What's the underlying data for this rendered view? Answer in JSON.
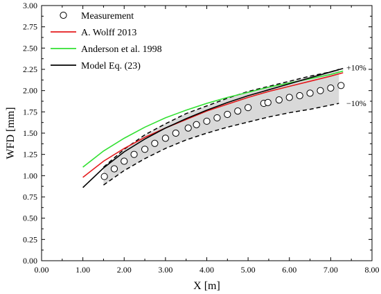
{
  "chart_data": {
    "type": "line",
    "xlabel": "X [m]",
    "ylabel": "WFD [mm]",
    "xlim": [
      0.0,
      8.0
    ],
    "ylim": [
      0.0,
      3.0
    ],
    "x_ticks": [
      "0.00",
      "1.00",
      "2.00",
      "3.00",
      "4.00",
      "5.00",
      "6.00",
      "7.00",
      "8.00"
    ],
    "y_ticks": [
      "0.00",
      "0.25",
      "0.50",
      "0.75",
      "1.00",
      "1.25",
      "1.50",
      "1.75",
      "2.00",
      "2.25",
      "2.50",
      "2.75",
      "3.00"
    ],
    "grid": false,
    "legend_position": "top-left",
    "legend": {
      "measurement": "Measurement",
      "wolff": "A. Wolff 2013",
      "anderson": "Anderson et al. 1998",
      "model": "Model Eq. (23)"
    },
    "annotations": {
      "plus": "+10%",
      "minus": "−10%"
    },
    "colors": {
      "wolff": "#e41a1c",
      "anderson": "#33e033",
      "model": "#000000",
      "band": "#d9d9d9",
      "marker_edge": "#000000"
    },
    "measurement": {
      "x": [
        1.52,
        1.76,
        2.0,
        2.24,
        2.5,
        2.74,
        3.0,
        3.25,
        3.55,
        3.75,
        4.0,
        4.25,
        4.5,
        4.75,
        5.0,
        5.38,
        5.48,
        5.75,
        6.0,
        6.25,
        6.5,
        6.75,
        7.0,
        7.25
      ],
      "y": [
        0.99,
        1.08,
        1.17,
        1.25,
        1.31,
        1.38,
        1.44,
        1.5,
        1.56,
        1.6,
        1.64,
        1.68,
        1.72,
        1.76,
        1.8,
        1.85,
        1.86,
        1.89,
        1.92,
        1.94,
        1.97,
        2.0,
        2.03,
        2.06
      ]
    },
    "series": [
      {
        "name": "A. Wolff 2013",
        "key": "wolff",
        "x": [
          1.0,
          1.5,
          2.0,
          2.5,
          3.0,
          3.5,
          4.0,
          4.5,
          5.0,
          5.5,
          6.0,
          6.5,
          7.0,
          7.3
        ],
        "y": [
          0.98,
          1.17,
          1.32,
          1.45,
          1.56,
          1.66,
          1.76,
          1.84,
          1.92,
          1.99,
          2.05,
          2.11,
          2.17,
          2.21
        ]
      },
      {
        "name": "Anderson et al. 1998",
        "key": "anderson",
        "x": [
          1.0,
          1.5,
          2.0,
          2.5,
          3.0,
          3.5,
          4.0,
          4.5,
          5.0,
          5.5,
          6.0,
          6.5,
          7.0,
          7.3
        ],
        "y": [
          1.1,
          1.29,
          1.44,
          1.57,
          1.68,
          1.77,
          1.85,
          1.92,
          1.98,
          2.04,
          2.09,
          2.14,
          2.19,
          2.23
        ]
      },
      {
        "name": "Model Eq. (23)",
        "key": "model",
        "x": [
          1.0,
          1.5,
          2.0,
          2.5,
          3.0,
          3.5,
          4.0,
          4.5,
          5.0,
          5.5,
          6.0,
          6.5,
          7.0,
          7.3
        ],
        "y": [
          0.86,
          1.09,
          1.28,
          1.43,
          1.56,
          1.67,
          1.77,
          1.86,
          1.94,
          2.01,
          2.08,
          2.15,
          2.22,
          2.26
        ]
      }
    ],
    "band": {
      "x": [
        1.5,
        2.0,
        2.5,
        3.0,
        3.5,
        4.0,
        4.5,
        5.0,
        5.5,
        6.0,
        6.5,
        7.0,
        7.2
      ],
      "upper": [
        1.1,
        1.31,
        1.48,
        1.61,
        1.73,
        1.82,
        1.91,
        1.99,
        2.05,
        2.11,
        2.17,
        2.22,
        2.25
      ],
      "lower": [
        0.89,
        1.06,
        1.2,
        1.32,
        1.42,
        1.5,
        1.57,
        1.63,
        1.69,
        1.74,
        1.78,
        1.83,
        1.85
      ]
    }
  }
}
